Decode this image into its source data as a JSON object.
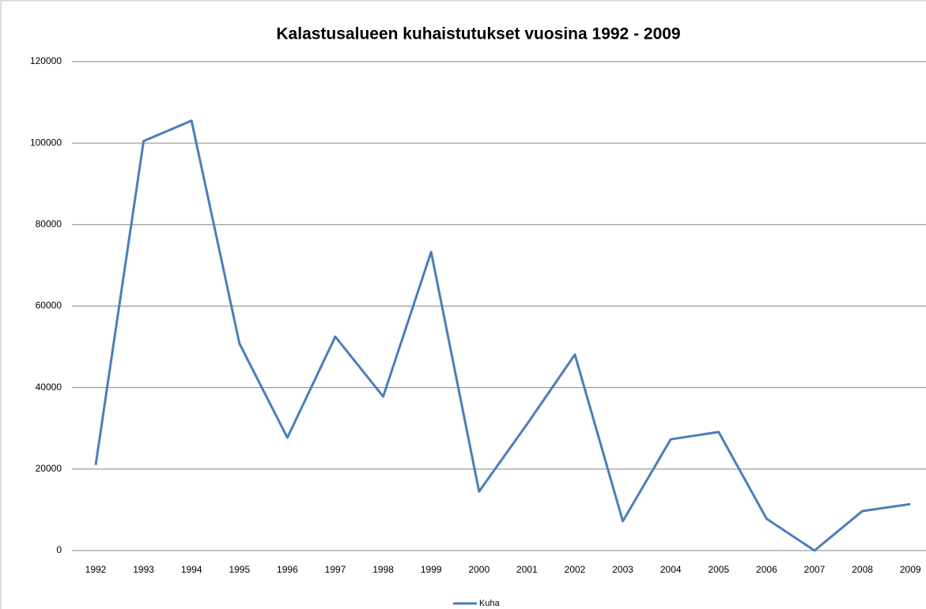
{
  "chart_data": {
    "type": "line",
    "title": "Kalastusalueen kuhaistutukset vuosina 1992 - 2009",
    "categories": [
      "1992",
      "1993",
      "1994",
      "1995",
      "1996",
      "1997",
      "1998",
      "1999",
      "2000",
      "2001",
      "2002",
      "2003",
      "2004",
      "2005",
      "2006",
      "2007",
      "2008",
      "2009"
    ],
    "series": [
      {
        "name": "Kuha",
        "color": "#4a7ebb",
        "values": [
          21000,
          100500,
          105500,
          50800,
          27700,
          52500,
          37800,
          73300,
          14500,
          31000,
          48100,
          7200,
          27300,
          29100,
          7800,
          0,
          9700,
          11400
        ]
      }
    ],
    "ylim": [
      0,
      120000
    ],
    "yticks": [
      0,
      20000,
      40000,
      60000,
      80000,
      100000,
      120000
    ],
    "grid": true,
    "legend": "bottom"
  }
}
